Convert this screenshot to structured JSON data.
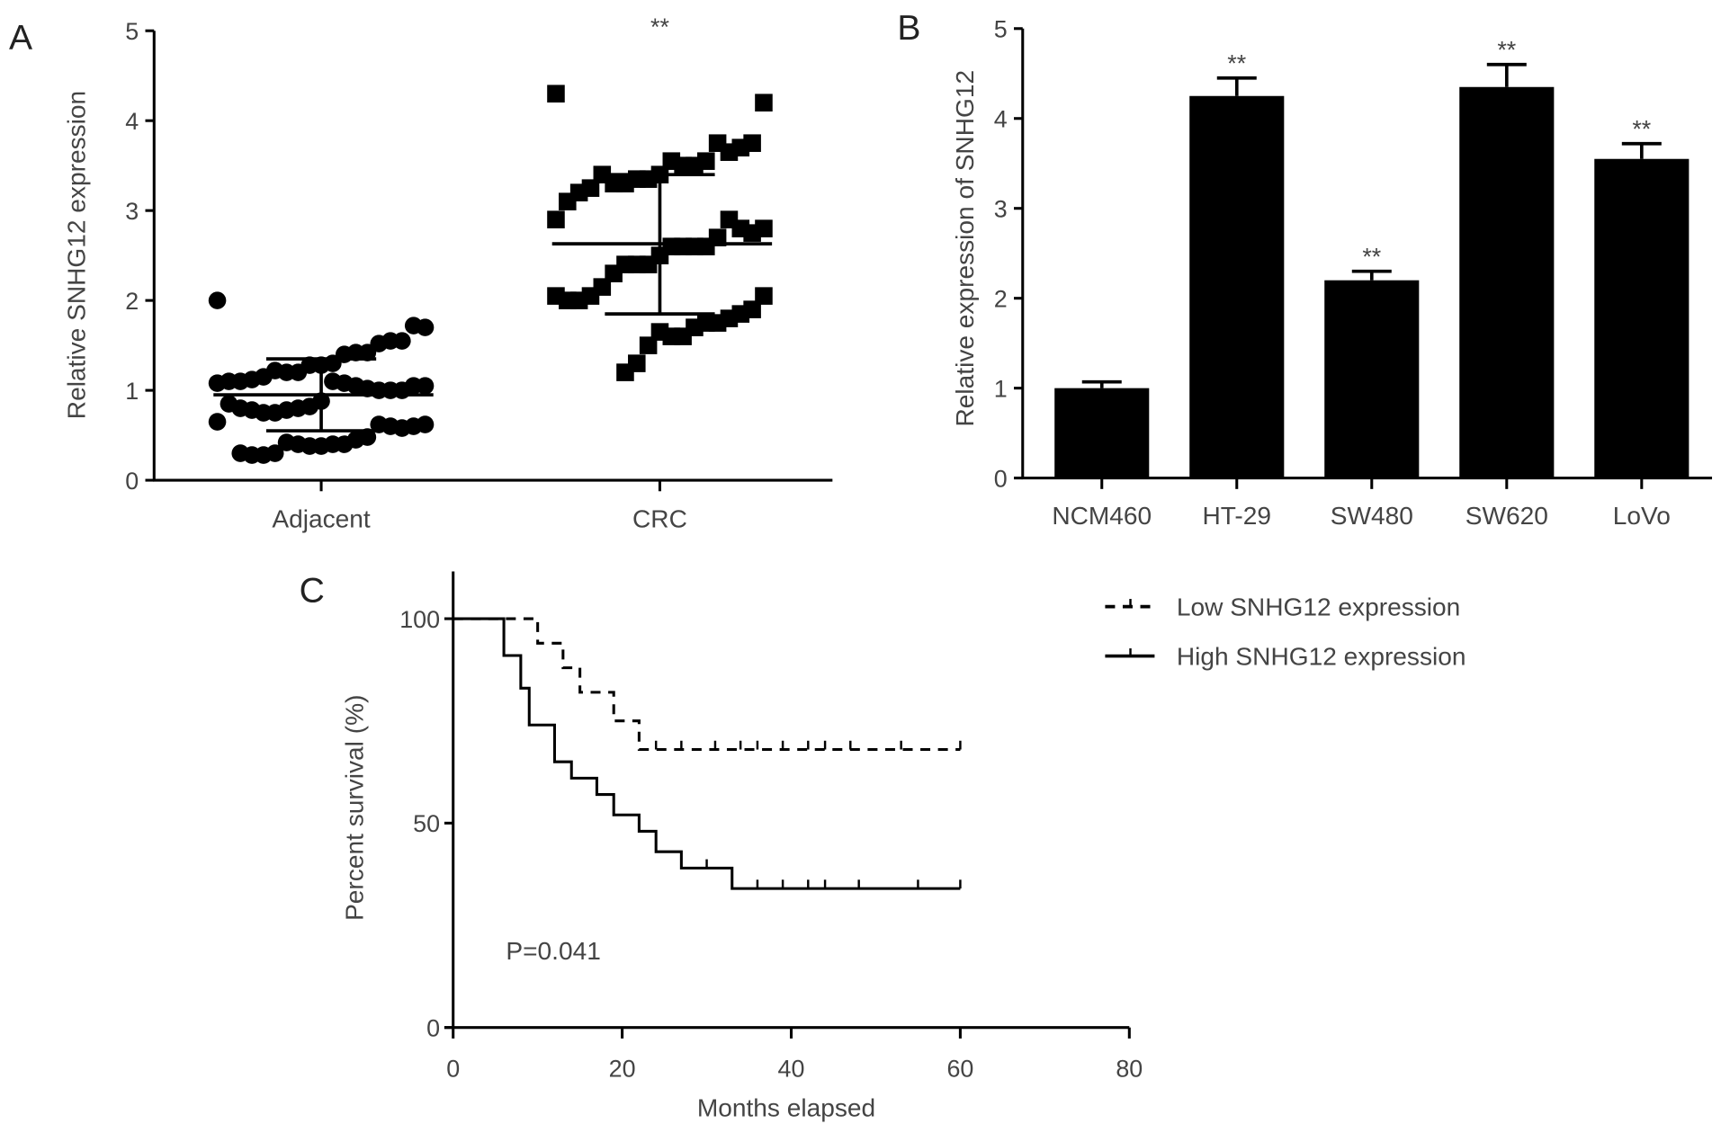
{
  "chart_data": [
    {
      "panel": "A",
      "type": "scatter",
      "ylabel": "Relative SNHG12 expression",
      "ylim": [
        0,
        5
      ],
      "yticks": [
        "0",
        "1",
        "2",
        "3",
        "4",
        "5"
      ],
      "categories": [
        "Adjacent",
        "CRC"
      ],
      "significance": "**",
      "series": [
        {
          "name": "Adjacent",
          "marker": "circle",
          "mean": 0.95,
          "sd_upper": 1.35,
          "sd_lower": 0.55,
          "values": [
            2.0,
            1.7,
            1.72,
            1.55,
            1.55,
            1.52,
            1.42,
            1.42,
            1.4,
            1.3,
            1.28,
            1.28,
            1.2,
            1.2,
            1.22,
            1.15,
            1.12,
            1.1,
            1.1,
            1.08,
            1.05,
            1.05,
            1.0,
            1.0,
            1.0,
            1.02,
            1.05,
            1.08,
            1.1,
            0.88,
            0.82,
            0.8,
            0.78,
            0.75,
            0.75,
            0.78,
            0.8,
            0.85,
            0.65,
            0.62,
            0.6,
            0.58,
            0.6,
            0.62,
            0.48,
            0.45,
            0.4,
            0.4,
            0.38,
            0.38,
            0.4,
            0.42,
            0.3,
            0.28,
            0.28,
            0.3
          ]
        },
        {
          "name": "CRC",
          "marker": "square",
          "mean": 2.63,
          "sd_upper": 3.4,
          "sd_lower": 1.85,
          "values": [
            4.3,
            4.2,
            3.75,
            3.7,
            3.65,
            3.75,
            3.55,
            3.5,
            3.5,
            3.55,
            3.4,
            3.35,
            3.35,
            3.3,
            3.3,
            3.4,
            3.25,
            3.2,
            3.1,
            2.9,
            2.8,
            2.75,
            2.8,
            2.9,
            2.7,
            2.6,
            2.6,
            2.6,
            2.6,
            2.5,
            2.4,
            2.4,
            2.4,
            2.3,
            2.15,
            2.05,
            2.0,
            2.0,
            2.05,
            2.05,
            1.9,
            1.85,
            1.8,
            1.75,
            1.75,
            1.7,
            1.6,
            1.6,
            1.65,
            1.5,
            1.3,
            1.2
          ]
        }
      ]
    },
    {
      "panel": "B",
      "type": "bar",
      "ylabel": "Relative expression of SNHG12",
      "ylim": [
        0,
        5
      ],
      "yticks": [
        "0",
        "1",
        "2",
        "3",
        "4",
        "5"
      ],
      "categories": [
        "NCM460",
        "HT-29",
        "SW480",
        "SW620",
        "LoVo"
      ],
      "values": [
        1.0,
        4.25,
        2.2,
        4.35,
        3.55
      ],
      "errors": [
        0.07,
        0.2,
        0.1,
        0.25,
        0.17
      ],
      "significance": [
        "",
        "**",
        "**",
        "**",
        "**"
      ],
      "color": "#000000"
    },
    {
      "panel": "C",
      "type": "line",
      "xlabel": "Months elapsed",
      "ylabel": "Percent survival (%)",
      "xlim": [
        0,
        80
      ],
      "ylim": [
        0,
        100
      ],
      "xticks": [
        "0",
        "20",
        "40",
        "60",
        "80"
      ],
      "yticks": [
        "0",
        "50",
        "100"
      ],
      "annotation": "P=0.041",
      "legend_position": "top-right",
      "series": [
        {
          "name": "Low SNHG12 expression",
          "style": "dashed",
          "steps": [
            [
              0,
              100
            ],
            [
              10,
              94
            ],
            [
              13,
              88
            ],
            [
              15,
              82
            ],
            [
              19,
              75
            ],
            [
              22,
              68
            ],
            [
              60,
              68
            ]
          ],
          "censored": [
            24,
            27,
            31,
            34,
            36,
            39,
            42,
            44,
            47,
            53,
            60
          ]
        },
        {
          "name": "High SNHG12 expression",
          "style": "solid",
          "steps": [
            [
              0,
              100
            ],
            [
              6,
              91
            ],
            [
              8,
              83
            ],
            [
              9,
              74
            ],
            [
              12,
              65
            ],
            [
              14,
              61
            ],
            [
              17,
              57
            ],
            [
              19,
              52
            ],
            [
              22,
              48
            ],
            [
              24,
              43
            ],
            [
              27,
              39
            ],
            [
              33,
              34
            ],
            [
              60,
              34
            ]
          ],
          "censored": [
            30,
            36,
            39,
            42,
            44,
            48,
            55,
            60
          ]
        }
      ]
    }
  ],
  "panel_labels": [
    "A",
    "B",
    "C"
  ]
}
